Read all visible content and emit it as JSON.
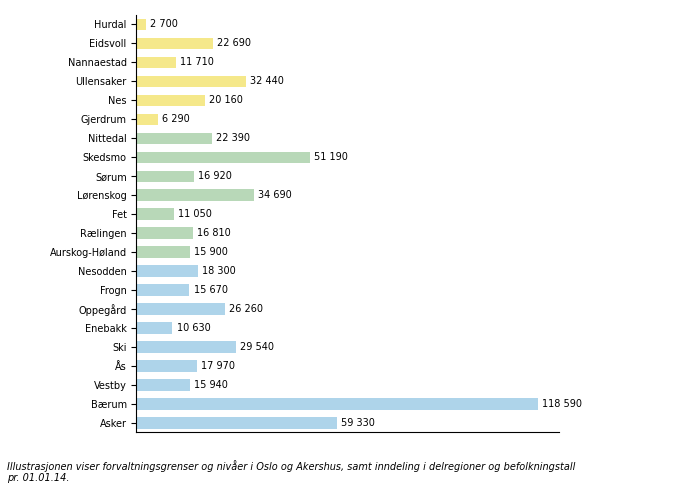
{
  "chart_data": {
    "type": "bar",
    "orientation": "horizontal",
    "categories": [
      "Hurdal",
      "Eidsvoll",
      "Nannaestad",
      "Ullensaker",
      "Nes",
      "Gjerdrum",
      "Nittedal",
      "Skedsmo",
      "Sørum",
      "Lørenskog",
      "Fet",
      "Rælingen",
      "Aurskog-Høland",
      "Nesodden",
      "Frogn",
      "Oppegård",
      "Enebakk",
      "Ski",
      "Ås",
      "Vestby",
      "Bærum",
      "Asker"
    ],
    "values": [
      2700,
      22690,
      11710,
      32440,
      20160,
      6290,
      22390,
      51190,
      16920,
      34690,
      11050,
      16810,
      15900,
      18300,
      15670,
      26260,
      10630,
      29540,
      17970,
      15940,
      118590,
      59330
    ],
    "value_labels": [
      "2 700",
      "22 690",
      "11 710",
      "32 440",
      "20 160",
      "6 290",
      "22 390",
      "51 190",
      "16 920",
      "34 690",
      "11 050",
      "16 810",
      "15 900",
      "18 300",
      "15 670",
      "26 260",
      "10 630",
      "29 540",
      "17 970",
      "15 940",
      "118 590",
      "59 330"
    ],
    "colors": [
      "#f5e88a",
      "#f5e88a",
      "#f5e88a",
      "#f5e88a",
      "#f5e88a",
      "#f5e88a",
      "#b8d8b8",
      "#b8d8b8",
      "#b8d8b8",
      "#b8d8b8",
      "#b8d8b8",
      "#b8d8b8",
      "#b8d8b8",
      "#aed4ea",
      "#aed4ea",
      "#aed4ea",
      "#aed4ea",
      "#aed4ea",
      "#aed4ea",
      "#aed4ea",
      "#aed4ea",
      "#aed4ea"
    ],
    "xlim": [
      0,
      125000
    ],
    "data_labels": true,
    "tick_labels": "y",
    "grid": false,
    "annotations": [
      "Illustrasjonen viser forvaltningsgrenser og nivåer i Oslo og Akershus, samt inndeling i delregioner og befolkningstall\npr. 01.01.14."
    ]
  }
}
